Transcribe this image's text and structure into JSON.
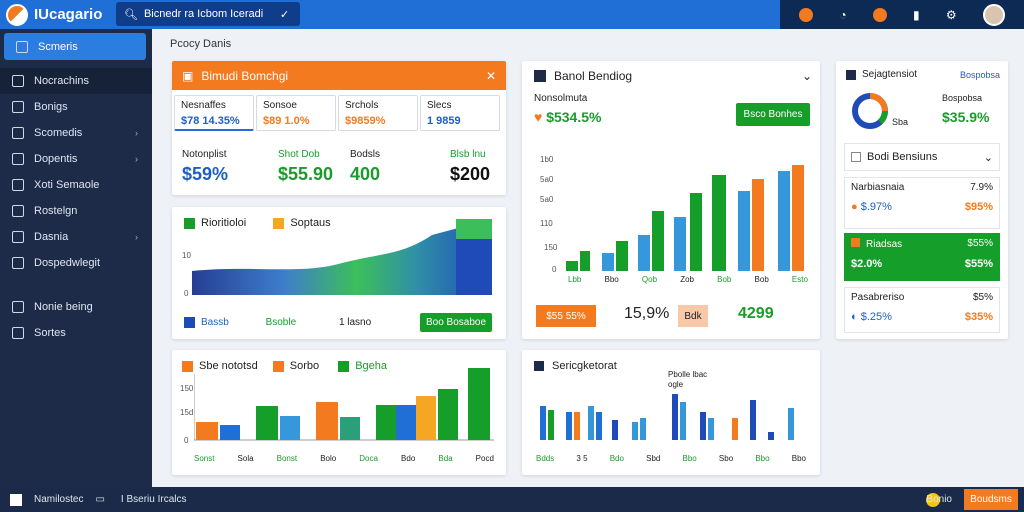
{
  "app": {
    "title": "IUcagario"
  },
  "search": {
    "value": "Bicnedr ra Icbom Iceradi"
  },
  "sidebar": {
    "items": [
      {
        "label": "Scmeris",
        "icon": "dashboard-icon",
        "active": true
      },
      {
        "label": "Nocrachins",
        "icon": "shirt-icon"
      },
      {
        "label": "Bonigs",
        "icon": "file-icon"
      },
      {
        "label": "Scomedis",
        "icon": "folder-icon",
        "chev": "›"
      },
      {
        "label": "Dopentis",
        "icon": "window-icon",
        "chev": "›"
      },
      {
        "label": "Xoti Semaole",
        "icon": "building-icon"
      },
      {
        "label": "Rostelgn",
        "icon": "doc-icon"
      },
      {
        "label": "Dasnia",
        "icon": "person-icon",
        "chev": "›"
      },
      {
        "label": "Dospedwlegit",
        "icon": "star-icon"
      },
      {
        "label": "Nonie being",
        "icon": "shield-icon"
      },
      {
        "label": "Sortes",
        "icon": "grid-icon"
      }
    ]
  },
  "crumb": "Pcocy Danis",
  "card1": {
    "title": "Bimudi Bomchgi",
    "stats": [
      {
        "label": "Nesnaffes",
        "value": "$78 14.35%"
      },
      {
        "label": "Sonsoe",
        "value": "$89 1.0%"
      },
      {
        "label": "Srchols",
        "value": "$9859%"
      },
      {
        "label": "Slecs",
        "value": "1 9859"
      }
    ],
    "bottom": [
      {
        "label": "Notonplist",
        "value": "$59%"
      },
      {
        "label": "Shot Dob",
        "value": "$55.90"
      },
      {
        "label": "Bodsls",
        "value": "400"
      },
      {
        "label": "Blsb lnu",
        "value": "$200"
      }
    ]
  },
  "card2": {
    "legend": [
      "Rioritioloi",
      "Soptaus"
    ],
    "ticks": [
      "10",
      "0"
    ],
    "footer": {
      "a": "Bassb",
      "b": "Bsoble",
      "c": "1 lasno",
      "button": "Boo Bosaboe"
    }
  },
  "card3": {
    "title": "Sbe nototsd",
    "legend": [
      "Sorbo",
      "Bgeha"
    ],
    "ticks": [
      "150",
      "15d",
      "0"
    ],
    "xlabels": [
      "Sonst",
      "Sola",
      "Bonst",
      "Bolo",
      "Doca",
      "Bdo",
      "Bda",
      "Pocd"
    ]
  },
  "card4": {
    "title": "Banol Bendiog",
    "sub": "Nonsolmuta",
    "value": "$534.5%",
    "button": "Bsco Bonhes",
    "ticks": [
      "1b0",
      "5a0",
      "5a0",
      "110",
      "150",
      "0"
    ],
    "xlabels": [
      "Lbb",
      "Bbo",
      "Qob",
      "Zob",
      "Bob",
      "Bob",
      "Esto"
    ],
    "foot": {
      "a": "$55 55%",
      "b": "15,9%",
      "c": "Bdk",
      "d": "4299"
    }
  },
  "card5": {
    "title": "Sericgketorat",
    "sub1": "Pbolle lbac",
    "sub2": "ogle",
    "xlabels": [
      "Bdds",
      "3 5",
      "Bdo",
      "Sbd",
      "Bbo",
      "Sbo",
      "Bbo",
      "Bbo"
    ]
  },
  "card6": {
    "title": "Sejagtensiot",
    "link": "Bospobsa",
    "donut_label": "Sba",
    "donut_value": "$35.9%",
    "dropdown": "Bodi Bensiuns",
    "rows": [
      {
        "a": "Narbiasnaia",
        "b": "7.9%",
        "c": "$.97%",
        "d": "$95%"
      },
      {
        "a": "Riadsas",
        "b": "$55%",
        "c": "$2.0%",
        "d": "$55%"
      },
      {
        "a": "Pasabreriso",
        "b": "$5%",
        "c": "$.25%",
        "d": "$35%"
      }
    ]
  },
  "footer": {
    "left": "Namilostec",
    "mid": "I Bseriu Ircalcs",
    "right_text": "Bonio",
    "button": "Boudsms"
  },
  "colors": {
    "accent": "#f47a1f",
    "primary": "#1f6fd6",
    "green": "#159e2a"
  }
}
